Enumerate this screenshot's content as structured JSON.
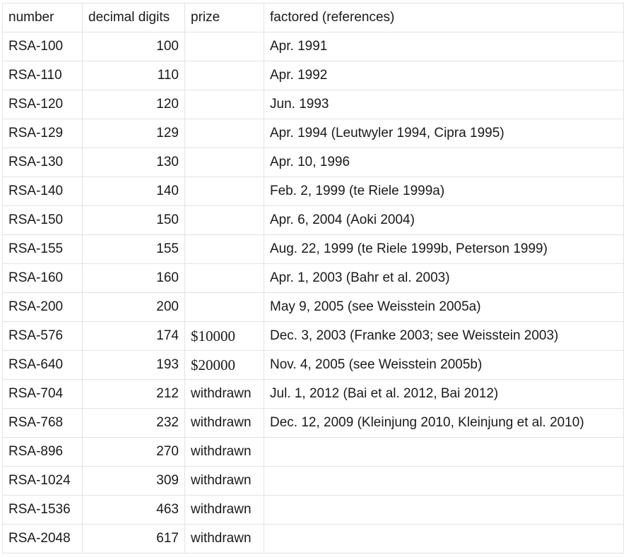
{
  "table": {
    "headers": {
      "number": "number",
      "digits": "decimal digits",
      "prize": "prize",
      "factored": "factored (references)"
    },
    "rows": [
      {
        "number": "RSA-100",
        "digits": "100",
        "prize": "",
        "factored": "Apr. 1991"
      },
      {
        "number": "RSA-110",
        "digits": "110",
        "prize": "",
        "factored": "Apr. 1992"
      },
      {
        "number": "RSA-120",
        "digits": "120",
        "prize": "",
        "factored": "Jun. 1993"
      },
      {
        "number": "RSA-129",
        "digits": "129",
        "prize": "",
        "factored": "Apr. 1994 (Leutwyler 1994, Cipra 1995)"
      },
      {
        "number": "RSA-130",
        "digits": "130",
        "prize": "",
        "factored": "Apr. 10, 1996"
      },
      {
        "number": "RSA-140",
        "digits": "140",
        "prize": "",
        "factored": "Feb. 2, 1999 (te Riele 1999a)"
      },
      {
        "number": "RSA-150",
        "digits": "150",
        "prize": "",
        "factored": "Apr. 6, 2004 (Aoki 2004)"
      },
      {
        "number": "RSA-155",
        "digits": "155",
        "prize": "",
        "factored": "Aug. 22, 1999 (te Riele 1999b, Peterson 1999)"
      },
      {
        "number": "RSA-160",
        "digits": "160",
        "prize": "",
        "factored": "Apr. 1, 2003 (Bahr et al. 2003)"
      },
      {
        "number": "RSA-200",
        "digits": "200",
        "prize": "",
        "factored": "May 9, 2005 (see Weisstein 2005a)"
      },
      {
        "number": "RSA-576",
        "digits": "174",
        "prize": "$10000",
        "factored": "Dec. 3, 2003 (Franke 2003; see Weisstein 2003)"
      },
      {
        "number": "RSA-640",
        "digits": "193",
        "prize": "$20000",
        "factored": "Nov. 4, 2005 (see Weisstein 2005b)"
      },
      {
        "number": "RSA-704",
        "digits": "212",
        "prize": "withdrawn",
        "factored": "Jul. 1, 2012 (Bai et al. 2012, Bai 2012)"
      },
      {
        "number": "RSA-768",
        "digits": "232",
        "prize": "withdrawn",
        "factored": "Dec. 12, 2009 (Kleinjung 2010, Kleinjung et al. 2010)"
      },
      {
        "number": "RSA-896",
        "digits": "270",
        "prize": "withdrawn",
        "factored": ""
      },
      {
        "number": "RSA-1024",
        "digits": "309",
        "prize": "withdrawn",
        "factored": ""
      },
      {
        "number": "RSA-1536",
        "digits": "463",
        "prize": "withdrawn",
        "factored": ""
      },
      {
        "number": "RSA-2048",
        "digits": "617",
        "prize": "withdrawn",
        "factored": ""
      }
    ]
  }
}
